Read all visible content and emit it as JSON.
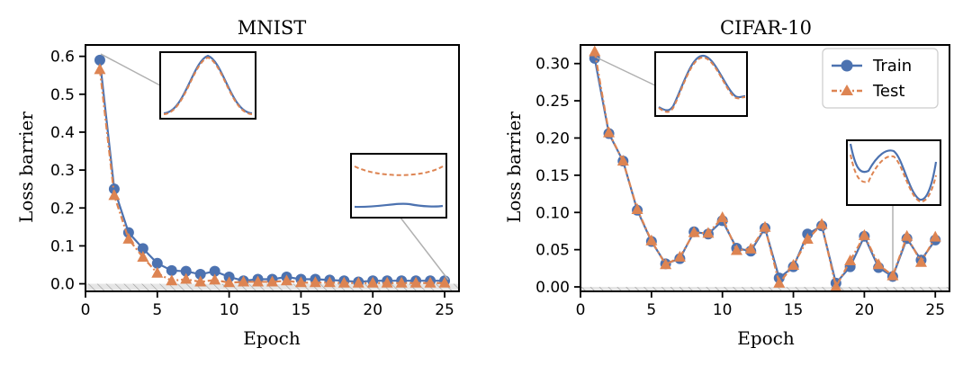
{
  "chart_data": [
    {
      "type": "line",
      "title": "MNIST",
      "xlabel": "Epoch",
      "ylabel": "Loss barrier",
      "xlim": [
        0,
        26
      ],
      "ylim": [
        -0.02,
        0.63
      ],
      "xticks": [
        "0",
        "5",
        "10",
        "15",
        "20",
        "25"
      ],
      "yticks": [
        "0.0",
        "0.1",
        "0.2",
        "0.3",
        "0.4",
        "0.5",
        "0.6"
      ],
      "x": [
        1,
        2,
        3,
        4,
        5,
        6,
        7,
        8,
        9,
        10,
        11,
        12,
        13,
        14,
        15,
        16,
        17,
        18,
        19,
        20,
        21,
        22,
        23,
        24,
        25
      ],
      "series": [
        {
          "name": "Train",
          "color": "#4c72b0",
          "marker": "circle",
          "values": [
            0.59,
            0.25,
            0.135,
            0.093,
            0.054,
            0.035,
            0.033,
            0.025,
            0.033,
            0.018,
            0.008,
            0.012,
            0.012,
            0.018,
            0.012,
            0.012,
            0.01,
            0.008,
            0.005,
            0.008,
            0.008,
            0.008,
            0.008,
            0.008,
            0.008
          ]
        },
        {
          "name": "Test",
          "color": "#dd8452",
          "marker": "triangle",
          "values": [
            0.565,
            0.233,
            0.118,
            0.07,
            0.028,
            0.008,
            0.012,
            0.005,
            0.01,
            0.003,
            0.005,
            0.005,
            0.005,
            0.008,
            0.003,
            0.003,
            0.003,
            0.002,
            0.002,
            0.002,
            0.002,
            0.002,
            0.002,
            0.002,
            0.002
          ]
        }
      ],
      "legend": "none",
      "shaded_region": {
        "y_from": -0.02,
        "y_to": 0.0,
        "pattern": "hatched"
      }
    },
    {
      "type": "line",
      "title": "CIFAR-10",
      "xlabel": "Epoch",
      "ylabel": "Loss barrier",
      "xlim": [
        0,
        26
      ],
      "ylim": [
        -0.006,
        0.325
      ],
      "xticks": [
        "0",
        "5",
        "10",
        "15",
        "20",
        "25"
      ],
      "yticks": [
        "0.00",
        "0.05",
        "0.10",
        "0.15",
        "0.20",
        "0.25",
        "0.30"
      ],
      "x": [
        1,
        2,
        3,
        4,
        5,
        6,
        7,
        8,
        9,
        10,
        11,
        12,
        13,
        14,
        15,
        16,
        17,
        18,
        19,
        20,
        21,
        22,
        23,
        24,
        25
      ],
      "series": [
        {
          "name": "Train",
          "color": "#4c72b0",
          "marker": "circle",
          "values": [
            0.307,
            0.206,
            0.169,
            0.103,
            0.061,
            0.031,
            0.038,
            0.074,
            0.071,
            0.089,
            0.052,
            0.048,
            0.079,
            0.012,
            0.027,
            0.071,
            0.082,
            0.005,
            0.027,
            0.068,
            0.026,
            0.014,
            0.065,
            0.036,
            0.063
          ]
        },
        {
          "name": "Test",
          "color": "#dd8452",
          "marker": "triangle",
          "values": [
            0.316,
            0.207,
            0.169,
            0.104,
            0.062,
            0.03,
            0.04,
            0.073,
            0.072,
            0.093,
            0.049,
            0.051,
            0.08,
            0.005,
            0.029,
            0.064,
            0.084,
            0.0,
            0.035,
            0.069,
            0.03,
            0.015,
            0.068,
            0.033,
            0.067
          ]
        }
      ],
      "legend": "top-right",
      "shaded_region": {
        "y_from": -0.006,
        "y_to": 0.0,
        "pattern": "hatched"
      }
    }
  ]
}
